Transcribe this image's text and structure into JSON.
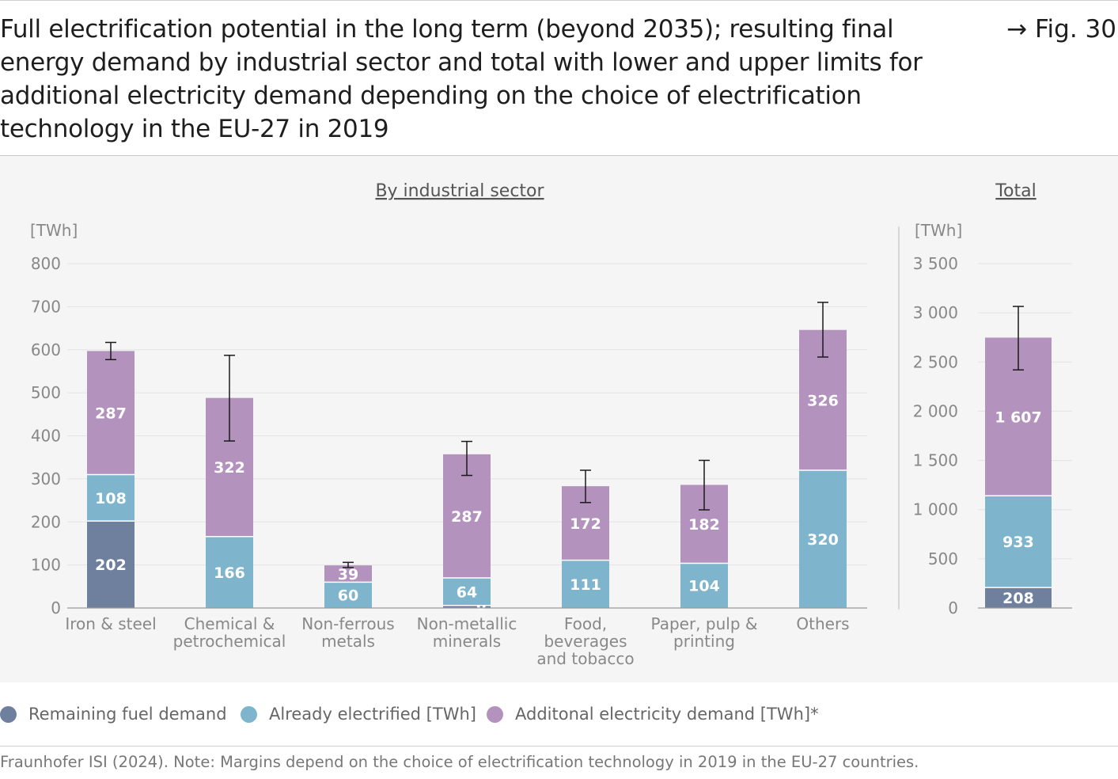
{
  "title": "Full electrification potential in the long term (beyond 2035); resulting final energy demand by industrial sector and total with lower and upper limits for additional electricity demand depending on the choice of electrification technology in the EU-27 in 2019",
  "figure_ref": "→ Fig. 30",
  "legend": [
    {
      "label": "Remaining fuel demand",
      "color": "#6f7f9e"
    },
    {
      "label": "Already electrified [TWh]",
      "color": "#7fb5cc"
    },
    {
      "label": "Additonal electricity demand [TWh]*",
      "color": "#b393bd"
    }
  ],
  "source": "Fraunhofer ISI (2024). Note: Margins depend on the choice of electrification technology in 2019 in the EU-27 countries.",
  "chart_data": [
    {
      "type": "bar",
      "stacked": true,
      "title": "By industrial sector",
      "ylabel": "[TWh]",
      "ylim": [
        0,
        800
      ],
      "yticks": [
        0,
        100,
        200,
        300,
        400,
        500,
        600,
        700,
        800
      ],
      "ytick_labels": [
        "0",
        "100",
        "200",
        "300",
        "400",
        "500",
        "600",
        "700",
        "800"
      ],
      "categories": [
        [
          "Iron & steel"
        ],
        [
          "Chemical &",
          "petrochemical"
        ],
        [
          "Non-ferrous",
          "metals"
        ],
        [
          "Non-metallic",
          "minerals"
        ],
        [
          "Food,",
          "beverages",
          "and tobacco"
        ],
        [
          "Paper, pulp &",
          "printing"
        ],
        [
          "Others"
        ]
      ],
      "series": [
        {
          "name": "Remaining fuel demand",
          "color": "#6f7f9e",
          "values": [
            202,
            0,
            0,
            6,
            0,
            0,
            0
          ],
          "labels": [
            "202",
            "",
            "",
            "6",
            "",
            "",
            ""
          ]
        },
        {
          "name": "Already electrified [TWh]",
          "color": "#7fb5cc",
          "values": [
            108,
            166,
            60,
            64,
            111,
            104,
            320
          ],
          "labels": [
            "108",
            "166",
            "60",
            "64",
            "111",
            "104",
            "320"
          ]
        },
        {
          "name": "Additonal electricity demand [TWh]*",
          "color": "#b393bd",
          "values": [
            287,
            322,
            39,
            287,
            172,
            182,
            326
          ],
          "labels": [
            "287",
            "322",
            "39",
            "287",
            "172",
            "182",
            "326"
          ]
        }
      ],
      "error_bars": [
        [
          577,
          617
        ],
        [
          388,
          587
        ],
        [
          94,
          106
        ],
        [
          308,
          387
        ],
        [
          245,
          320
        ],
        [
          228,
          343
        ],
        [
          583,
          710
        ]
      ],
      "grid": true
    },
    {
      "type": "bar",
      "stacked": true,
      "title": "Total",
      "ylabel": "[TWh]",
      "ylim": [
        0,
        3500
      ],
      "yticks": [
        0,
        500,
        1000,
        1500,
        2000,
        2500,
        3000,
        3500
      ],
      "ytick_labels": [
        "0",
        "500",
        "1 000",
        "1 500",
        "2 000",
        "2 500",
        "3 000",
        "3 500"
      ],
      "categories": [
        [
          ""
        ]
      ],
      "series": [
        {
          "name": "Remaining fuel demand",
          "color": "#6f7f9e",
          "values": [
            208
          ],
          "labels": [
            "208"
          ]
        },
        {
          "name": "Already electrified [TWh]",
          "color": "#7fb5cc",
          "values": [
            933
          ],
          "labels": [
            "933"
          ]
        },
        {
          "name": "Additonal electricity demand [TWh]*",
          "color": "#b393bd",
          "values": [
            1607
          ],
          "labels": [
            "1 607"
          ]
        }
      ],
      "error_bars": [
        [
          2420,
          3065
        ]
      ],
      "grid": true
    }
  ]
}
